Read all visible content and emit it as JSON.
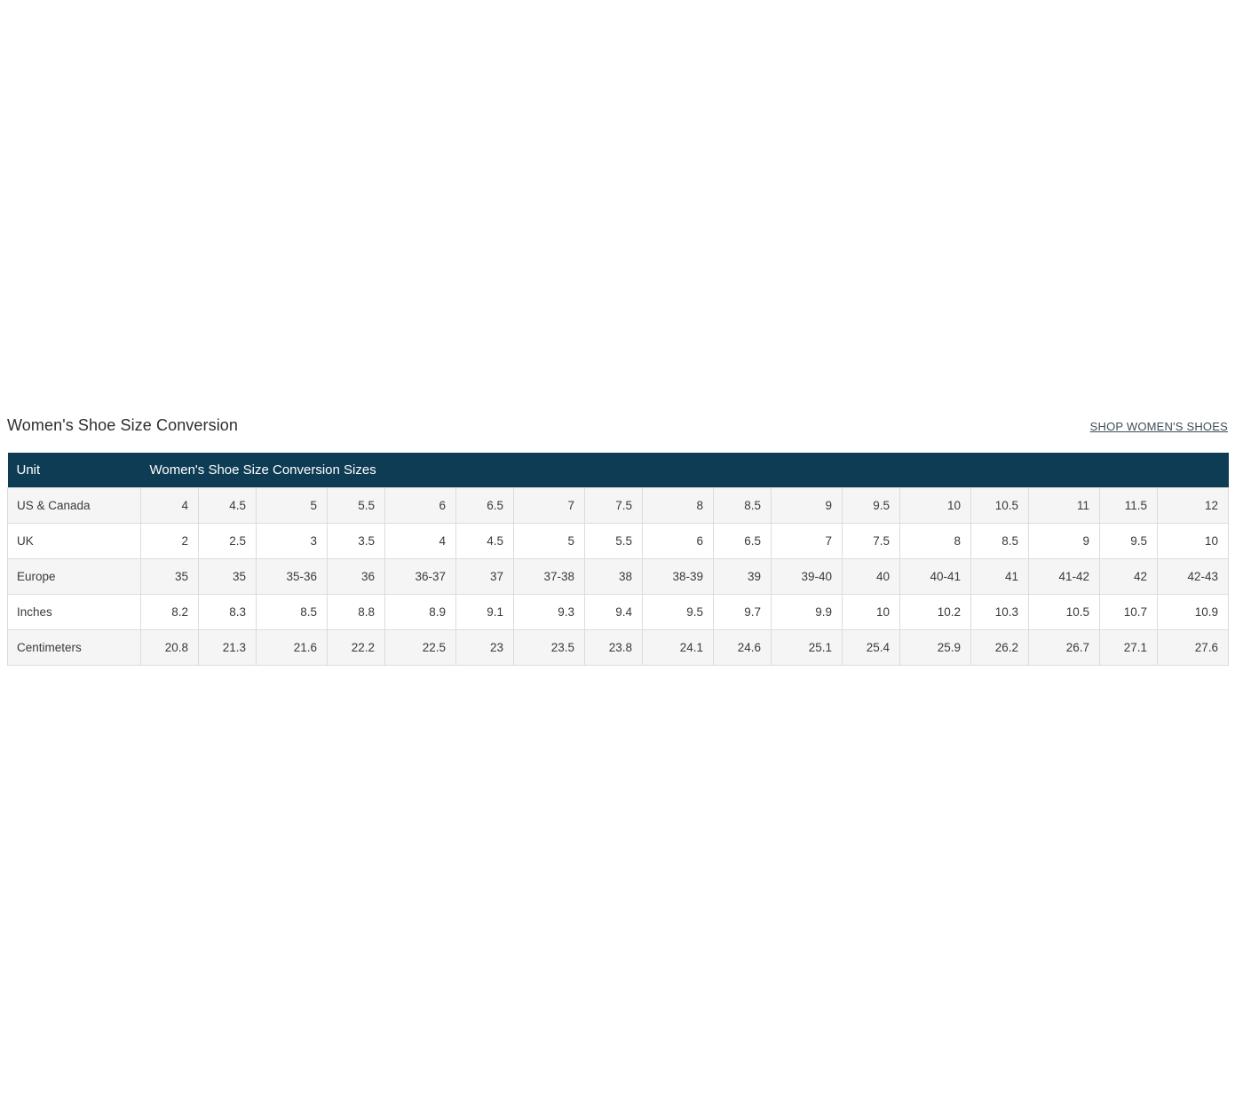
{
  "section": {
    "title": "Women's Shoe Size Conversion",
    "shop_link": "SHOP WOMEN'S SHOES"
  },
  "table": {
    "header": {
      "unit": "Unit",
      "sizes": "Women's Shoe Size Conversion Sizes"
    },
    "rows": [
      {
        "label": "US & Canada",
        "values": [
          "4",
          "4.5",
          "5",
          "5.5",
          "6",
          "6.5",
          "7",
          "7.5",
          "8",
          "8.5",
          "9",
          "9.5",
          "10",
          "10.5",
          "11",
          "11.5",
          "12"
        ]
      },
      {
        "label": "UK",
        "values": [
          "2",
          "2.5",
          "3",
          "3.5",
          "4",
          "4.5",
          "5",
          "5.5",
          "6",
          "6.5",
          "7",
          "7.5",
          "8",
          "8.5",
          "9",
          "9.5",
          "10"
        ]
      },
      {
        "label": "Europe",
        "values": [
          "35",
          "35",
          "35-36",
          "36",
          "36-37",
          "37",
          "37-38",
          "38",
          "38-39",
          "39",
          "39-40",
          "40",
          "40-41",
          "41",
          "41-42",
          "42",
          "42-43"
        ]
      },
      {
        "label": "Inches",
        "values": [
          "8.2",
          "8.3",
          "8.5",
          "8.8",
          "8.9",
          "9.1",
          "9.3",
          "9.4",
          "9.5",
          "9.7",
          "9.9",
          "10",
          "10.2",
          "10.3",
          "10.5",
          "10.7",
          "10.9"
        ]
      },
      {
        "label": "Centimeters",
        "values": [
          "20.8",
          "21.3",
          "21.6",
          "22.2",
          "22.5",
          "23",
          "23.5",
          "23.8",
          "24.1",
          "24.6",
          "25.1",
          "25.4",
          "25.9",
          "26.2",
          "26.7",
          "27.1",
          "27.6"
        ]
      }
    ]
  },
  "colors": {
    "header_bg": "#0e3c54",
    "zebra_row_bg": "#f5f5f5",
    "cell_border": "#dcdcdc",
    "title_text": "#2e2e2e",
    "cell_text": "#3a3a3a",
    "link_text": "#3f4e58"
  }
}
